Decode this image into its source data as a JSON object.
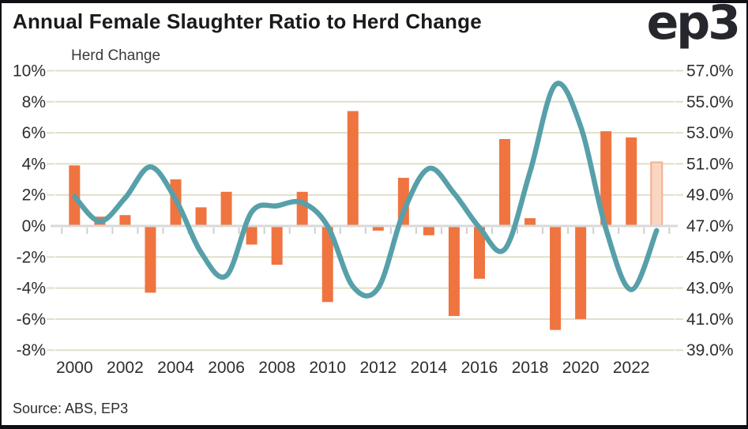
{
  "header": {
    "title": "Annual Female Slaughter Ratio to Herd Change",
    "logo": "ep3"
  },
  "footer": {
    "source": "Source: ABS, EP3"
  },
  "chart_data": {
    "type": "bar",
    "subtype": "combo-bar-line-dual-axis",
    "title": "Annual Female Slaughter Ratio to Herd Change",
    "years": [
      2000,
      2001,
      2002,
      2003,
      2004,
      2005,
      2006,
      2007,
      2008,
      2009,
      2010,
      2011,
      2012,
      2013,
      2014,
      2015,
      2016,
      2017,
      2018,
      2019,
      2020,
      2021,
      2022,
      2023
    ],
    "series": [
      {
        "name": "Herd Change",
        "type": "bar",
        "axis": "left",
        "unit": "%",
        "values": [
          3.9,
          0.6,
          0.7,
          -4.3,
          3.0,
          1.2,
          2.2,
          -1.2,
          -2.5,
          2.2,
          -4.9,
          7.4,
          -0.3,
          3.1,
          -0.6,
          -5.8,
          -3.4,
          5.6,
          0.5,
          -6.7,
          -6.0,
          6.1,
          5.7,
          4.1
        ]
      },
      {
        "name": "Female Slaughter Ratio",
        "type": "line",
        "axis": "right",
        "unit": "%",
        "values": [
          48.9,
          47.3,
          48.8,
          50.8,
          48.7,
          45.3,
          43.8,
          47.9,
          48.3,
          48.5,
          47.0,
          43.1,
          43.0,
          47.9,
          50.7,
          49.1,
          46.9,
          45.5,
          50.5,
          56.1,
          53.4,
          46.8,
          42.9,
          46.7
        ]
      }
    ],
    "left_axis": {
      "title": "Herd Change",
      "ticks": [
        "10%",
        "8%",
        "6%",
        "4%",
        "2%",
        "0%",
        "-2%",
        "-4%",
        "-6%",
        "-8%"
      ],
      "tick_values": [
        10,
        8,
        6,
        4,
        2,
        0,
        -2,
        -4,
        -6,
        -8
      ]
    },
    "right_axis": {
      "ticks": [
        "57.0%",
        "55.0%",
        "53.0%",
        "51.0%",
        "49.0%",
        "47.0%",
        "45.0%",
        "43.0%",
        "41.0%",
        "39.0%"
      ],
      "tick_values": [
        57,
        55,
        53,
        51,
        49,
        47,
        45,
        43,
        41,
        39
      ],
      "alignment": "right_value = left_value + 47"
    },
    "x_axis": {
      "tick_labels": [
        "2000",
        "2002",
        "2004",
        "2006",
        "2008",
        "2010",
        "2012",
        "2014",
        "2016",
        "2018",
        "2020",
        "2022"
      ]
    },
    "highlight_last_bar": true,
    "legend_position": "none",
    "grid": true,
    "colors": {
      "bar": "#ef7440",
      "bar_forecast_fill": "#fad5c2",
      "bar_forecast_border": "#f3b091",
      "line": "#57a0aa",
      "gridline": "#e0dfc8",
      "axis_line": "#d8d8d8",
      "axis_tick": "#cfcfcf",
      "label_text": "#2e2e2e",
      "title_text": "#1a1a1a",
      "frame_border": "#101014"
    }
  }
}
